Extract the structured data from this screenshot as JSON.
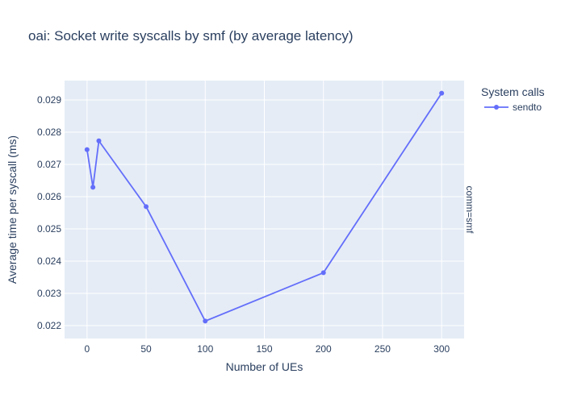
{
  "chart_data": {
    "type": "line",
    "title": "oai: Socket write syscalls by smf (by average latency)",
    "xlabel": "Number of UEs",
    "ylabel": "Average time per syscall (ms)",
    "xlim": [
      -19,
      319
    ],
    "ylim": [
      0.0216,
      0.0296
    ],
    "xticks": [
      0,
      50,
      100,
      150,
      200,
      250,
      300
    ],
    "xtick_labels": [
      "0",
      "50",
      "100",
      "150",
      "200",
      "250",
      "300"
    ],
    "yticks": [
      0.022,
      0.023,
      0.024,
      0.025,
      0.026,
      0.027,
      0.028,
      0.029
    ],
    "ytick_labels": [
      "0.022",
      "0.023",
      "0.024",
      "0.025",
      "0.026",
      "0.027",
      "0.028",
      "0.029"
    ],
    "grid": true,
    "legend": {
      "title": "System calls",
      "placement": "top-right"
    },
    "facet_label": "comm=smf",
    "series": [
      {
        "name": "sendto",
        "color": "#636efa",
        "x": [
          0,
          5,
          10,
          50,
          100,
          200,
          300
        ],
        "y": [
          0.02746,
          0.02629,
          0.02773,
          0.02569,
          0.02214,
          0.02364,
          0.02921
        ]
      }
    ]
  },
  "colors": {
    "plot_background": "#e5ecf6",
    "grid": "#ffffff",
    "text": "#2a3f5f"
  }
}
